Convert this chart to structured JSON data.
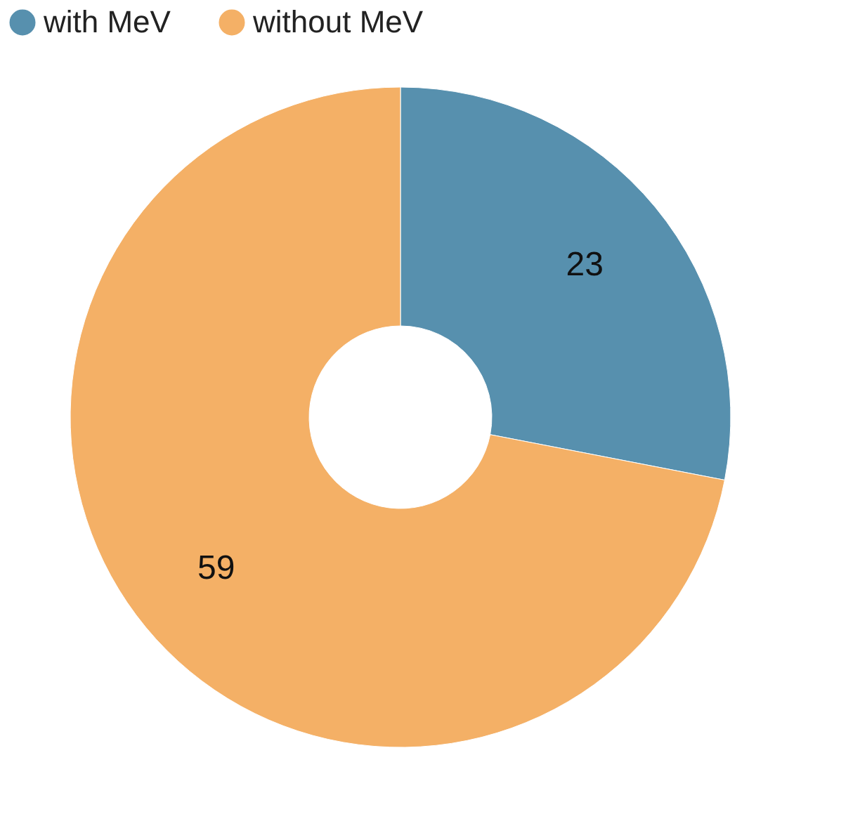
{
  "chart_data": {
    "type": "donut",
    "categories": [
      "with MeV",
      "without MeV"
    ],
    "values": [
      23,
      59
    ],
    "colors": [
      "#5790ae",
      "#f4b066"
    ],
    "data_labels": true,
    "legend": "top"
  }
}
